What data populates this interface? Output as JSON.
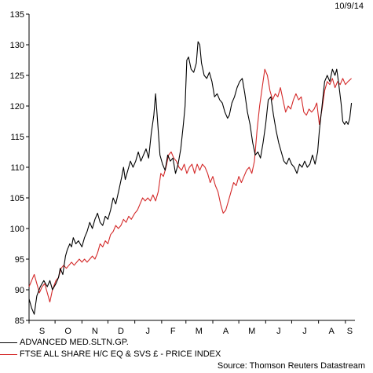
{
  "date_label": "10/9/14",
  "source_label": "Source: Thomson Reuters Datastream",
  "colors": {
    "series_a": "#000000",
    "series_b": "#d42a2a",
    "axis": "#000000"
  },
  "chart_data": {
    "type": "line",
    "title": "",
    "xlabel": "",
    "ylabel": "",
    "ylim": [
      85,
      135
    ],
    "yticks": [
      85,
      90,
      95,
      100,
      105,
      110,
      115,
      120,
      125,
      130,
      135
    ],
    "xlim": [
      "2013-09-01",
      "2014-09-12"
    ],
    "month_labels": [
      {
        "label": "S",
        "date": "2013-09-16"
      },
      {
        "label": "O",
        "date": "2013-10-16"
      },
      {
        "label": "N",
        "date": "2013-11-16"
      },
      {
        "label": "D",
        "date": "2013-12-16"
      },
      {
        "label": "J",
        "date": "2014-01-16"
      },
      {
        "label": "F",
        "date": "2014-02-14"
      },
      {
        "label": "M",
        "date": "2014-03-16"
      },
      {
        "label": "A",
        "date": "2014-04-16"
      },
      {
        "label": "M",
        "date": "2014-05-16"
      },
      {
        "label": "J",
        "date": "2014-06-16"
      },
      {
        "label": "J",
        "date": "2014-07-16"
      },
      {
        "label": "A",
        "date": "2014-08-16"
      },
      {
        "label": "S",
        "date": "2014-09-06"
      }
    ],
    "legend_position": "bottom-left",
    "series": [
      {
        "name": "ADVANCED MED.SLTN.GP.",
        "points": [
          [
            "2013-09-01",
            88.5
          ],
          [
            "2013-09-04",
            87.0
          ],
          [
            "2013-09-07",
            86.0
          ],
          [
            "2013-09-10",
            89.0
          ],
          [
            "2013-09-14",
            90.5
          ],
          [
            "2013-09-18",
            91.5
          ],
          [
            "2013-09-22",
            90.5
          ],
          [
            "2013-09-25",
            91.5
          ],
          [
            "2013-09-28",
            90.0
          ],
          [
            "2013-10-02",
            91.0
          ],
          [
            "2013-10-05",
            92.0
          ],
          [
            "2013-10-07",
            93.5
          ],
          [
            "2013-10-10",
            92.5
          ],
          [
            "2013-10-13",
            95.5
          ],
          [
            "2013-10-15",
            96.5
          ],
          [
            "2013-10-18",
            97.5
          ],
          [
            "2013-10-20",
            97.0
          ],
          [
            "2013-10-22",
            98.5
          ],
          [
            "2013-10-25",
            97.5
          ],
          [
            "2013-10-28",
            98.0
          ],
          [
            "2013-11-01",
            97.0
          ],
          [
            "2013-11-04",
            98.5
          ],
          [
            "2013-11-07",
            99.5
          ],
          [
            "2013-11-10",
            101.0
          ],
          [
            "2013-11-13",
            100.0
          ],
          [
            "2013-11-16",
            101.5
          ],
          [
            "2013-11-19",
            102.5
          ],
          [
            "2013-11-22",
            101.0
          ],
          [
            "2013-11-25",
            100.5
          ],
          [
            "2013-11-28",
            102.0
          ],
          [
            "2013-12-01",
            101.5
          ],
          [
            "2013-12-04",
            103.0
          ],
          [
            "2013-12-07",
            105.0
          ],
          [
            "2013-12-10",
            104.0
          ],
          [
            "2013-12-14",
            106.5
          ],
          [
            "2013-12-17",
            108.5
          ],
          [
            "2013-12-19",
            110.0
          ],
          [
            "2013-12-21",
            108.0
          ],
          [
            "2013-12-24",
            109.5
          ],
          [
            "2013-12-27",
            111.0
          ],
          [
            "2013-12-30",
            110.0
          ],
          [
            "2014-01-02",
            111.0
          ],
          [
            "2014-01-05",
            112.5
          ],
          [
            "2014-01-08",
            111.0
          ],
          [
            "2014-01-11",
            112.0
          ],
          [
            "2014-01-14",
            113.0
          ],
          [
            "2014-01-17",
            111.5
          ],
          [
            "2014-01-20",
            115.5
          ],
          [
            "2014-01-23",
            118.5
          ],
          [
            "2014-01-25",
            122.0
          ],
          [
            "2014-01-27",
            118.0
          ],
          [
            "2014-01-30",
            112.0
          ],
          [
            "2014-02-02",
            110.5
          ],
          [
            "2014-02-05",
            109.5
          ],
          [
            "2014-02-08",
            112.0
          ],
          [
            "2014-02-11",
            111.0
          ],
          [
            "2014-02-14",
            111.5
          ],
          [
            "2014-02-17",
            109.0
          ],
          [
            "2014-02-20",
            110.5
          ],
          [
            "2014-02-23",
            113.0
          ],
          [
            "2014-02-26",
            117.0
          ],
          [
            "2014-02-28",
            120.0
          ],
          [
            "2014-03-02",
            127.5
          ],
          [
            "2014-03-04",
            128.0
          ],
          [
            "2014-03-07",
            126.0
          ],
          [
            "2014-03-10",
            125.5
          ],
          [
            "2014-03-13",
            127.0
          ],
          [
            "2014-03-15",
            130.5
          ],
          [
            "2014-03-17",
            130.0
          ],
          [
            "2014-03-19",
            127.0
          ],
          [
            "2014-03-22",
            125.0
          ],
          [
            "2014-03-25",
            124.5
          ],
          [
            "2014-03-28",
            125.5
          ],
          [
            "2014-03-31",
            124.0
          ],
          [
            "2014-04-03",
            121.5
          ],
          [
            "2014-04-06",
            122.0
          ],
          [
            "2014-04-09",
            121.0
          ],
          [
            "2014-04-12",
            120.5
          ],
          [
            "2014-04-15",
            119.0
          ],
          [
            "2014-04-18",
            118.0
          ],
          [
            "2014-04-20",
            118.5
          ],
          [
            "2014-04-23",
            120.5
          ],
          [
            "2014-04-26",
            121.5
          ],
          [
            "2014-04-29",
            123.0
          ],
          [
            "2014-05-02",
            124.0
          ],
          [
            "2014-05-05",
            124.5
          ],
          [
            "2014-05-08",
            122.0
          ],
          [
            "2014-05-11",
            119.0
          ],
          [
            "2014-05-14",
            117.0
          ],
          [
            "2014-05-17",
            114.0
          ],
          [
            "2014-05-20",
            112.0
          ],
          [
            "2014-05-23",
            112.5
          ],
          [
            "2014-05-26",
            111.5
          ],
          [
            "2014-05-29",
            114.0
          ],
          [
            "2014-06-01",
            117.0
          ],
          [
            "2014-06-04",
            121.0
          ],
          [
            "2014-06-07",
            121.5
          ],
          [
            "2014-06-10",
            118.5
          ],
          [
            "2014-06-13",
            116.0
          ],
          [
            "2014-06-16",
            114.0
          ],
          [
            "2014-06-19",
            112.5
          ],
          [
            "2014-06-22",
            111.0
          ],
          [
            "2014-06-25",
            110.5
          ],
          [
            "2014-06-28",
            111.5
          ],
          [
            "2014-07-01",
            110.5
          ],
          [
            "2014-07-04",
            110.0
          ],
          [
            "2014-07-07",
            109.0
          ],
          [
            "2014-07-10",
            110.5
          ],
          [
            "2014-07-13",
            110.0
          ],
          [
            "2014-07-16",
            111.0
          ],
          [
            "2014-07-19",
            110.0
          ],
          [
            "2014-07-22",
            110.5
          ],
          [
            "2014-07-25",
            112.0
          ],
          [
            "2014-07-28",
            110.5
          ],
          [
            "2014-07-31",
            112.5
          ],
          [
            "2014-08-02",
            116.0
          ],
          [
            "2014-08-05",
            120.0
          ],
          [
            "2014-08-08",
            124.0
          ],
          [
            "2014-08-11",
            125.0
          ],
          [
            "2014-08-14",
            124.0
          ],
          [
            "2014-08-17",
            126.0
          ],
          [
            "2014-08-20",
            125.0
          ],
          [
            "2014-08-22",
            126.0
          ],
          [
            "2014-08-24",
            124.0
          ],
          [
            "2014-08-27",
            120.5
          ],
          [
            "2014-08-29",
            117.5
          ],
          [
            "2014-08-31",
            117.0
          ],
          [
            "2014-09-02",
            117.5
          ],
          [
            "2014-09-04",
            117.0
          ],
          [
            "2014-09-06",
            118.0
          ],
          [
            "2014-09-08",
            120.5
          ]
        ]
      },
      {
        "name": "FTSE ALL SHARE H/C EQ & SVS £ - PRICE INDEX",
        "points": [
          [
            "2013-09-01",
            90.5
          ],
          [
            "2013-09-04",
            91.5
          ],
          [
            "2013-09-07",
            92.5
          ],
          [
            "2013-09-10",
            91.0
          ],
          [
            "2013-09-13",
            89.5
          ],
          [
            "2013-09-16",
            90.5
          ],
          [
            "2013-09-19",
            91.0
          ],
          [
            "2013-09-22",
            89.5
          ],
          [
            "2013-09-25",
            88.0
          ],
          [
            "2013-09-28",
            90.0
          ],
          [
            "2013-10-02",
            91.5
          ],
          [
            "2013-10-05",
            92.0
          ],
          [
            "2013-10-08",
            93.5
          ],
          [
            "2013-10-11",
            94.0
          ],
          [
            "2013-10-14",
            93.5
          ],
          [
            "2013-10-17",
            94.0
          ],
          [
            "2013-10-20",
            94.5
          ],
          [
            "2013-10-23",
            94.0
          ],
          [
            "2013-10-26",
            94.5
          ],
          [
            "2013-10-29",
            95.0
          ],
          [
            "2013-11-01",
            94.5
          ],
          [
            "2013-11-04",
            95.0
          ],
          [
            "2013-11-07",
            94.5
          ],
          [
            "2013-11-10",
            95.0
          ],
          [
            "2013-11-13",
            95.5
          ],
          [
            "2013-11-16",
            95.0
          ],
          [
            "2013-11-19",
            96.0
          ],
          [
            "2013-11-22",
            97.5
          ],
          [
            "2013-11-25",
            97.0
          ],
          [
            "2013-11-28",
            98.0
          ],
          [
            "2013-12-01",
            97.5
          ],
          [
            "2013-12-04",
            99.0
          ],
          [
            "2013-12-07",
            99.5
          ],
          [
            "2013-12-10",
            100.5
          ],
          [
            "2013-12-13",
            100.0
          ],
          [
            "2013-12-16",
            100.5
          ],
          [
            "2013-12-19",
            101.5
          ],
          [
            "2013-12-22",
            101.0
          ],
          [
            "2013-12-25",
            102.0
          ],
          [
            "2013-12-28",
            101.5
          ],
          [
            "2014-01-01",
            102.5
          ],
          [
            "2014-01-04",
            103.0
          ],
          [
            "2014-01-07",
            104.0
          ],
          [
            "2014-01-10",
            105.0
          ],
          [
            "2014-01-13",
            104.5
          ],
          [
            "2014-01-16",
            105.0
          ],
          [
            "2014-01-19",
            104.5
          ],
          [
            "2014-01-22",
            105.5
          ],
          [
            "2014-01-25",
            104.5
          ],
          [
            "2014-01-28",
            106.0
          ],
          [
            "2014-01-31",
            109.0
          ],
          [
            "2014-02-03",
            108.5
          ],
          [
            "2014-02-06",
            110.0
          ],
          [
            "2014-02-09",
            112.0
          ],
          [
            "2014-02-12",
            112.5
          ],
          [
            "2014-02-15",
            111.5
          ],
          [
            "2014-02-18",
            111.0
          ],
          [
            "2014-02-21",
            110.0
          ],
          [
            "2014-02-24",
            109.5
          ],
          [
            "2014-02-27",
            110.5
          ],
          [
            "2014-03-02",
            109.0
          ],
          [
            "2014-03-05",
            110.0
          ],
          [
            "2014-03-08",
            110.5
          ],
          [
            "2014-03-11",
            109.0
          ],
          [
            "2014-03-14",
            110.5
          ],
          [
            "2014-03-17",
            109.5
          ],
          [
            "2014-03-20",
            110.5
          ],
          [
            "2014-03-23",
            110.0
          ],
          [
            "2014-03-26",
            109.0
          ],
          [
            "2014-03-29",
            107.5
          ],
          [
            "2014-04-01",
            108.5
          ],
          [
            "2014-04-04",
            107.0
          ],
          [
            "2014-04-07",
            106.0
          ],
          [
            "2014-04-10",
            104.0
          ],
          [
            "2014-04-13",
            102.5
          ],
          [
            "2014-04-16",
            103.0
          ],
          [
            "2014-04-19",
            104.5
          ],
          [
            "2014-04-22",
            106.0
          ],
          [
            "2014-04-25",
            107.5
          ],
          [
            "2014-04-28",
            107.0
          ],
          [
            "2014-05-01",
            108.5
          ],
          [
            "2014-05-04",
            107.5
          ],
          [
            "2014-05-07",
            108.5
          ],
          [
            "2014-05-10",
            109.5
          ],
          [
            "2014-05-13",
            110.0
          ],
          [
            "2014-05-16",
            109.0
          ],
          [
            "2014-05-19",
            111.0
          ],
          [
            "2014-05-22",
            116.0
          ],
          [
            "2014-05-25",
            120.0
          ],
          [
            "2014-05-28",
            123.0
          ],
          [
            "2014-05-31",
            126.0
          ],
          [
            "2014-06-03",
            125.0
          ],
          [
            "2014-06-06",
            122.5
          ],
          [
            "2014-06-09",
            121.0
          ],
          [
            "2014-06-12",
            122.0
          ],
          [
            "2014-06-15",
            121.5
          ],
          [
            "2014-06-18",
            123.0
          ],
          [
            "2014-06-21",
            121.0
          ],
          [
            "2014-06-24",
            119.0
          ],
          [
            "2014-06-27",
            120.0
          ],
          [
            "2014-06-30",
            119.5
          ],
          [
            "2014-07-03",
            121.0
          ],
          [
            "2014-07-06",
            122.0
          ],
          [
            "2014-07-09",
            121.0
          ],
          [
            "2014-07-12",
            121.5
          ],
          [
            "2014-07-15",
            119.0
          ],
          [
            "2014-07-18",
            118.5
          ],
          [
            "2014-07-21",
            119.5
          ],
          [
            "2014-07-24",
            119.0
          ],
          [
            "2014-07-27",
            119.5
          ],
          [
            "2014-07-30",
            120.5
          ],
          [
            "2014-08-02",
            117.0
          ],
          [
            "2014-08-05",
            119.5
          ],
          [
            "2014-08-08",
            122.5
          ],
          [
            "2014-08-11",
            124.0
          ],
          [
            "2014-08-14",
            123.5
          ],
          [
            "2014-08-17",
            124.5
          ],
          [
            "2014-08-20",
            123.0
          ],
          [
            "2014-08-23",
            124.0
          ],
          [
            "2014-08-26",
            123.5
          ],
          [
            "2014-08-29",
            124.5
          ],
          [
            "2014-09-01",
            123.5
          ],
          [
            "2014-09-04",
            124.0
          ],
          [
            "2014-09-08",
            124.5
          ]
        ]
      }
    ]
  }
}
